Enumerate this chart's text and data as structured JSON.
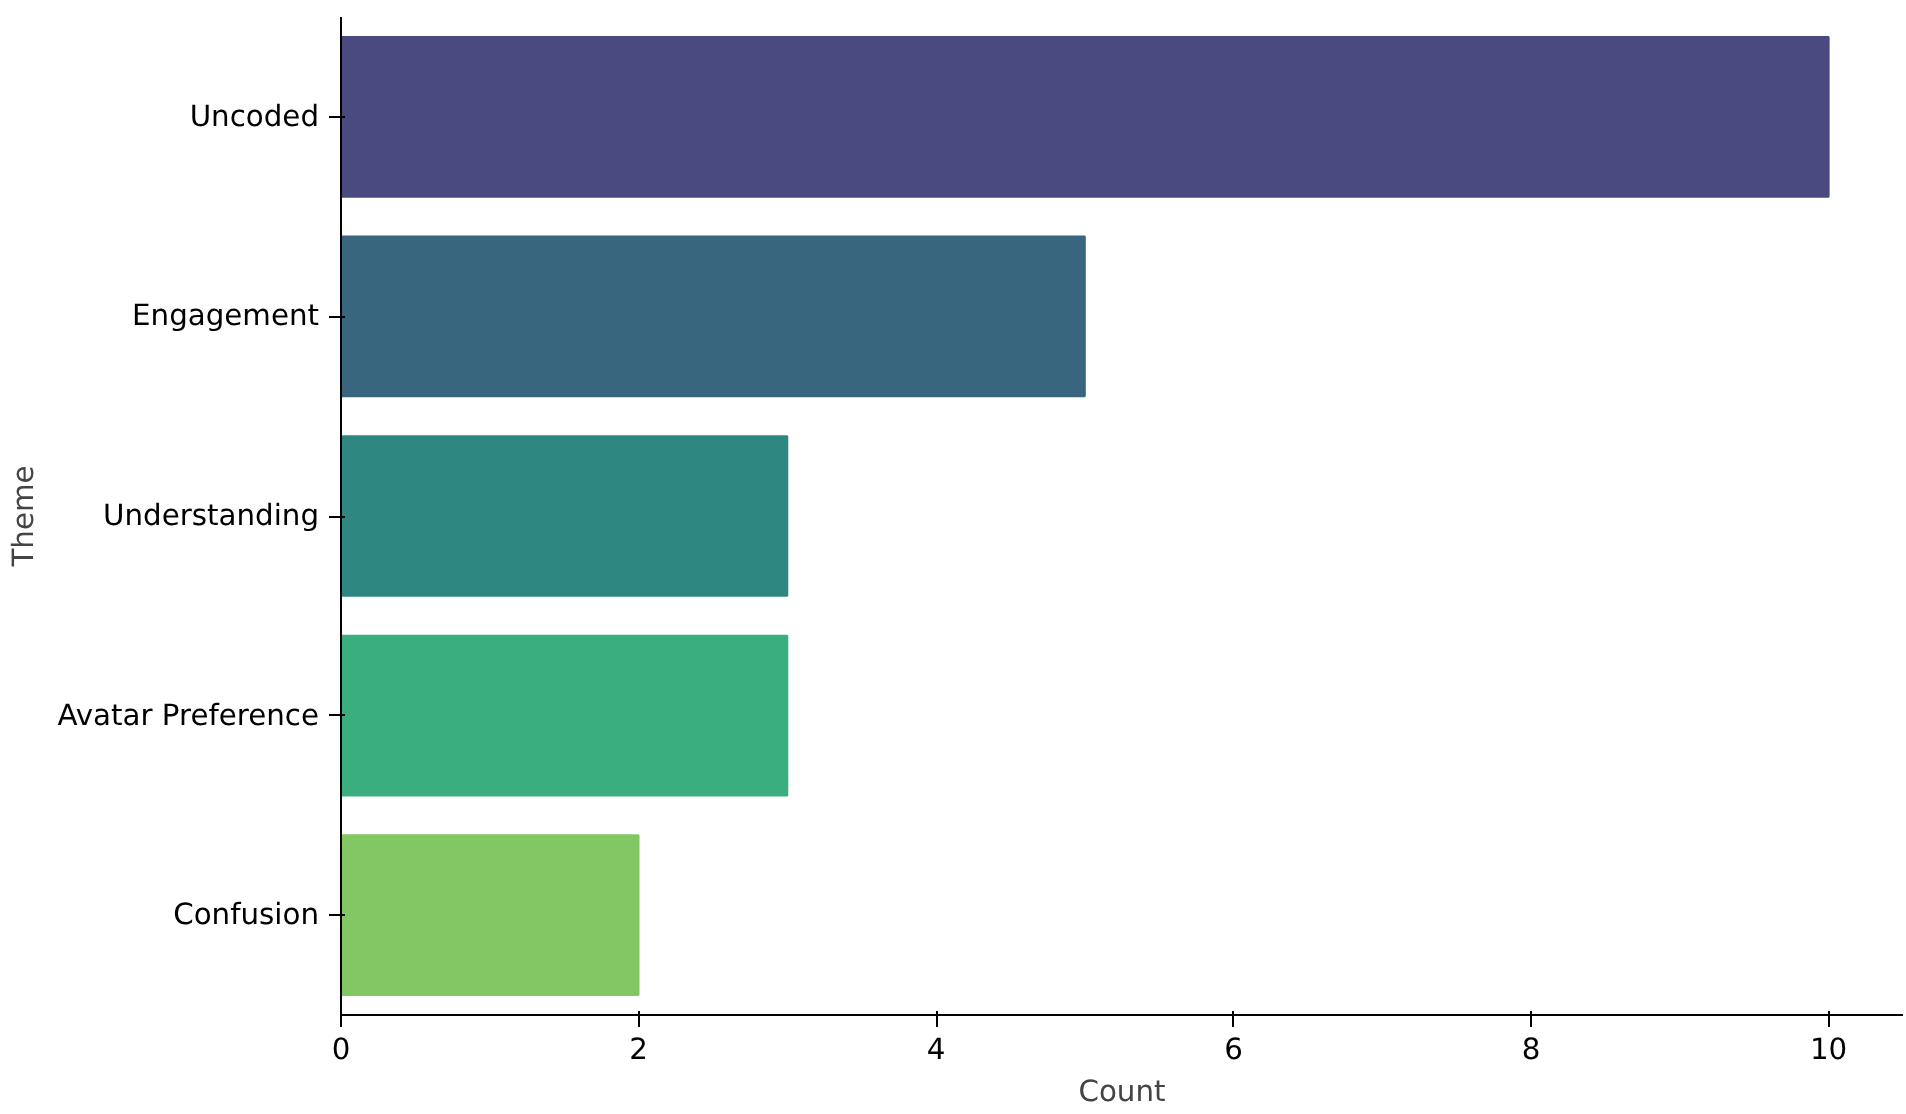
{
  "chart_data": {
    "type": "bar",
    "orientation": "horizontal",
    "xlabel": "Count",
    "ylabel": "Theme",
    "categories": [
      "Uncoded",
      "Engagement",
      "Understanding",
      "Avatar Preference",
      "Confusion"
    ],
    "values": [
      10,
      5,
      3,
      3,
      2
    ],
    "colors": [
      "#4a4a80",
      "#38667f",
      "#2e8780",
      "#3bae80",
      "#83c764"
    ],
    "xlim": [
      0,
      10.5
    ],
    "xticks": [
      0,
      2,
      4,
      6,
      8,
      10
    ],
    "grid": false
  }
}
